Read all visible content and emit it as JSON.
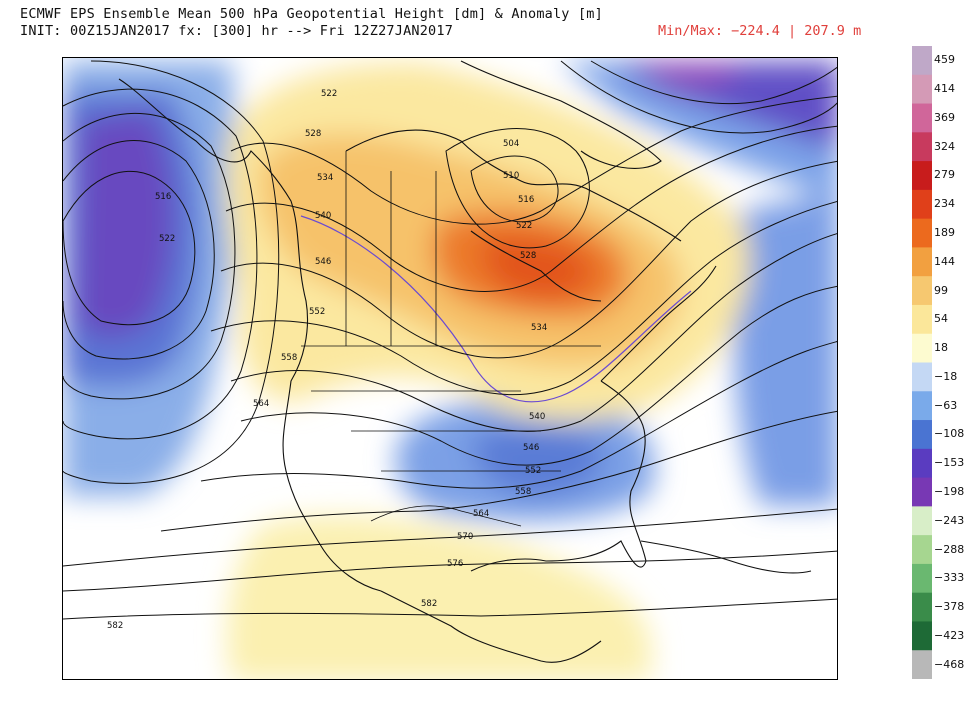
{
  "header": {
    "title": "ECMWF EPS Ensemble Mean 500 hPa Geopotential Height [dm] & Anomaly [m]",
    "subtitle": "INIT: 00Z15JAN2017 fx: [300] hr --> Fri 12Z27JAN2017",
    "minmax": "Min/Max: −224.4 | 207.9 m"
  },
  "colorbar": {
    "labels": [
      "459",
      "414",
      "369",
      "324",
      "279",
      "234",
      "189",
      "144",
      "99",
      "54",
      "18",
      "−18",
      "−63",
      "−108",
      "−153",
      "−198",
      "−243",
      "−288",
      "−333",
      "−378",
      "−423",
      "−468"
    ],
    "colors": [
      "#bfa8c8",
      "#d49ab6",
      "#d0669a",
      "#c83a5e",
      "#c81c1c",
      "#e0401a",
      "#ec6a1e",
      "#f2a040",
      "#f6c870",
      "#fbe79a",
      "#fdfbd0",
      "#c4d8f4",
      "#7aaaea",
      "#4a74d2",
      "#5a3cc0",
      "#7838b4",
      "#d8eec8",
      "#a6d690",
      "#6ab870",
      "#3a8c4a",
      "#1e6a36",
      "#b8b8b8"
    ],
    "colors_meaning": "anomaly shading scale"
  },
  "contours": {
    "labels": [
      "522",
      "528",
      "534",
      "540",
      "546",
      "552",
      "558",
      "564",
      "516",
      "522",
      "504",
      "510",
      "516",
      "522",
      "528",
      "534",
      "540",
      "546",
      "552",
      "558",
      "564",
      "570",
      "576",
      "582",
      "582"
    ]
  }
}
